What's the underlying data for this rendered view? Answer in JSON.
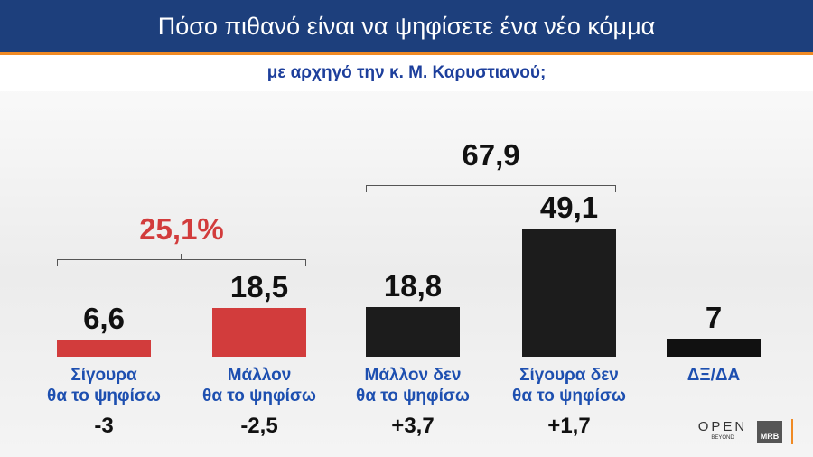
{
  "chart_data": {
    "type": "bar",
    "title": "Πόσο πιθανό είναι να ψηφίσετε ένα νέο κόμμα",
    "subtitle": "με αρχηγό την κ. Μ. Καρυστιανού;",
    "categories": [
      "Σίγουρα\nθα το ψηφίσω",
      "Μάλλον\nθα το ψηφίσω",
      "Μάλλον δεν\nθα το ψηφίσω",
      "Σίγουρα δεν\nθα το ψηφίσω",
      "ΔΞ/ΔΑ"
    ],
    "values": [
      6.6,
      18.5,
      18.8,
      49.1,
      7
    ],
    "value_labels": [
      "6,6",
      "18,5",
      "18,8",
      "49,1",
      "7"
    ],
    "colors": [
      "#d23c3c",
      "#d23c3c",
      "#1c1c1c",
      "#1c1c1c",
      "#111111"
    ],
    "changes": [
      -3,
      -2.5,
      3.7,
      1.7,
      null
    ],
    "change_labels": [
      "-3",
      "-2,5",
      "+3,7",
      "+1,7",
      null
    ],
    "groups": [
      {
        "label": "25,1%",
        "value": 25.1,
        "color": "#d23c3c"
      },
      {
        "label": "67,9",
        "value": 67.9,
        "color": "#111111"
      }
    ],
    "ylim": [
      0,
      50
    ],
    "logos": [
      "OPEN",
      "BEYOND",
      "MRB"
    ]
  }
}
